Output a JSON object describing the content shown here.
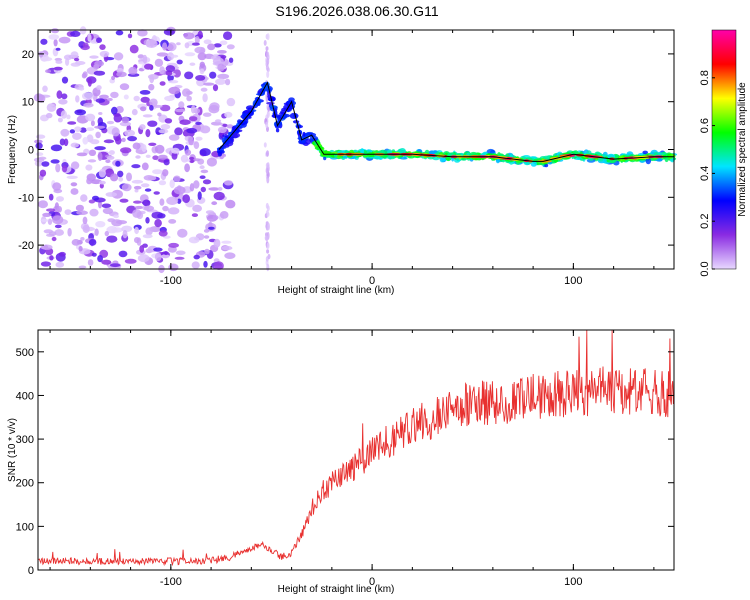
{
  "title": "S196.2026.038.06.30.G11",
  "chart_data": [
    {
      "type": "heatmap",
      "xlabel": "Height of straight line (km)",
      "ylabel": "Frequency (Hz)",
      "xlim": [
        -166,
        150
      ],
      "ylim": [
        -25,
        25
      ],
      "x_ticks": [
        -100,
        0,
        100
      ],
      "y_ticks": [
        20,
        10,
        0,
        -10,
        -20
      ],
      "colorbar": {
        "label": "Normalized spectral amplitude",
        "range": [
          0,
          1
        ],
        "ticks": [
          "0.0",
          "0.2",
          "0.4",
          "0.6",
          "0.8"
        ],
        "colors": [
          "#e8d8ff",
          "#8a2be2",
          "#0000ff",
          "#00e5ff",
          "#00ff00",
          "#ffff00",
          "#ff0000",
          "#ff00aa"
        ]
      },
      "ridge": {
        "x": [
          -76,
          -68,
          -60,
          -52,
          -47,
          -40,
          -35,
          -30,
          -24,
          -18,
          -10,
          0,
          10,
          20,
          40,
          60,
          80,
          85,
          100,
          120,
          140,
          150
        ],
        "y": [
          0,
          4,
          8,
          14,
          5,
          10,
          2,
          3,
          -1,
          -1,
          -1,
          -1,
          -1,
          -1,
          -1.5,
          -1.5,
          -2.5,
          -2.5,
          -1,
          -2,
          -1.5,
          -1.5
        ]
      }
    },
    {
      "type": "line",
      "xlabel": "Height of straight line (km)",
      "ylabel": "SNR (10 * v/v)",
      "xlim": [
        -166,
        150
      ],
      "ylim": [
        0,
        550
      ],
      "x_ticks": [
        -100,
        0,
        100
      ],
      "y_ticks": [
        0,
        100,
        200,
        300,
        400,
        500
      ],
      "series": [
        {
          "name": "SNR",
          "color": "#e8302f",
          "x": [
            -166,
            -150,
            -130,
            -110,
            -90,
            -80,
            -70,
            -60,
            -55,
            -50,
            -45,
            -40,
            -35,
            -30,
            -25,
            -20,
            -15,
            -10,
            -5,
            0,
            10,
            20,
            30,
            40,
            50,
            60,
            70,
            80,
            90,
            100,
            110,
            120,
            130,
            140,
            150
          ],
          "y": [
            20,
            20,
            20,
            20,
            20,
            22,
            30,
            50,
            60,
            45,
            30,
            40,
            80,
            140,
            180,
            200,
            220,
            230,
            250,
            270,
            300,
            330,
            350,
            370,
            380,
            385,
            390,
            395,
            400,
            405,
            410,
            410,
            405,
            410,
            400
          ]
        }
      ]
    }
  ]
}
